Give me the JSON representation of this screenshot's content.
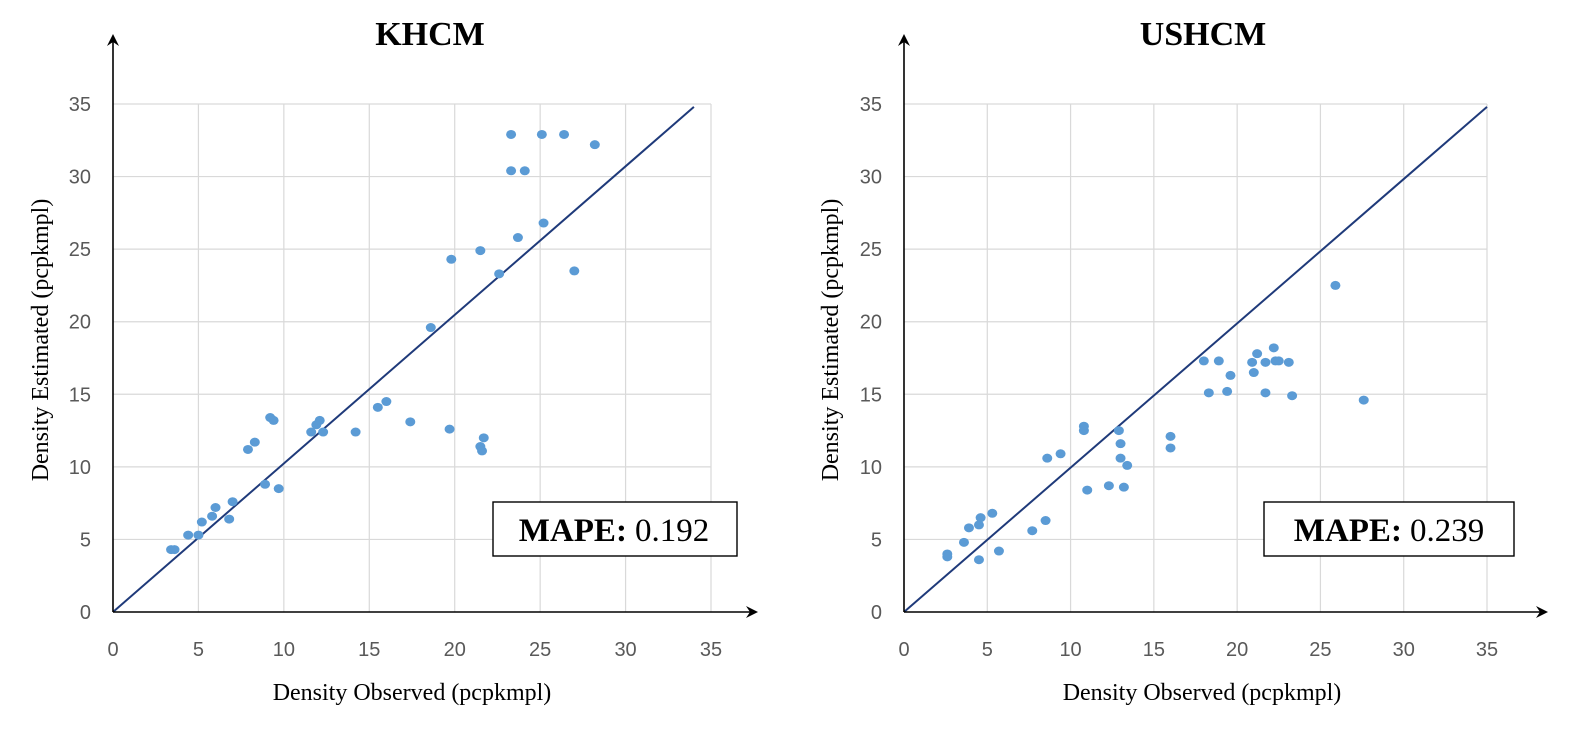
{
  "colors": {
    "point": "#5b9bd5",
    "line": "#1f3a7a",
    "grid": "#d9d9d9",
    "axis": "#000000"
  },
  "chart_data": [
    {
      "type": "scatter",
      "title": "KHCM",
      "xlabel": "Density Observed (pcpkmpl)",
      "ylabel": "Density Estimated (pcpkmpl)",
      "xlim": [
        0,
        35
      ],
      "ylim": [
        0,
        35
      ],
      "xticks": [
        "0",
        "5",
        "10",
        "15",
        "20",
        "25",
        "30",
        "35"
      ],
      "yticks": [
        "0",
        "5",
        "10",
        "15",
        "20",
        "25",
        "30",
        "35"
      ],
      "grid": true,
      "reference_line": {
        "x": [
          0,
          34
        ],
        "y": [
          0,
          34.8
        ]
      },
      "annotation": {
        "label": "MAPE:",
        "value": "0.192",
        "placement": "bottom-right"
      },
      "points": [
        [
          3.4,
          4.3
        ],
        [
          3.6,
          4.3
        ],
        [
          4.4,
          5.3
        ],
        [
          5.0,
          5.3
        ],
        [
          5.2,
          6.2
        ],
        [
          5.8,
          6.6
        ],
        [
          6.0,
          7.2
        ],
        [
          6.8,
          6.4
        ],
        [
          7.0,
          7.6
        ],
        [
          7.9,
          11.2
        ],
        [
          8.3,
          11.7
        ],
        [
          8.9,
          8.8
        ],
        [
          9.2,
          13.4
        ],
        [
          9.4,
          13.2
        ],
        [
          9.7,
          8.5
        ],
        [
          11.6,
          12.4
        ],
        [
          11.9,
          12.9
        ],
        [
          12.1,
          13.2
        ],
        [
          12.3,
          12.4
        ],
        [
          14.2,
          12.4
        ],
        [
          15.5,
          14.1
        ],
        [
          16.0,
          14.5
        ],
        [
          17.4,
          13.1
        ],
        [
          18.6,
          19.6
        ],
        [
          19.7,
          12.6
        ],
        [
          19.8,
          24.3
        ],
        [
          21.5,
          24.9
        ],
        [
          21.5,
          11.4
        ],
        [
          21.6,
          11.1
        ],
        [
          21.7,
          12.0
        ],
        [
          22.6,
          23.3
        ],
        [
          23.3,
          32.9
        ],
        [
          23.3,
          30.4
        ],
        [
          23.7,
          25.8
        ],
        [
          24.1,
          30.4
        ],
        [
          25.1,
          32.9
        ],
        [
          25.2,
          26.8
        ],
        [
          26.4,
          32.9
        ],
        [
          27.0,
          23.5
        ],
        [
          28.2,
          32.2
        ]
      ]
    },
    {
      "type": "scatter",
      "title": "USHCM",
      "xlabel": "Density Observed (pcpkmpl)",
      "ylabel": "Density Estimated (pcpkmpl)",
      "xlim": [
        0,
        35
      ],
      "ylim": [
        0,
        35
      ],
      "xticks": [
        "0",
        "5",
        "10",
        "15",
        "20",
        "25",
        "30",
        "35"
      ],
      "yticks": [
        "0",
        "5",
        "10",
        "15",
        "20",
        "25",
        "30",
        "35"
      ],
      "grid": true,
      "reference_line": {
        "x": [
          0,
          35
        ],
        "y": [
          0,
          34.8
        ]
      },
      "annotation": {
        "label": "MAPE:",
        "value": "0.239",
        "placement": "bottom-right"
      },
      "points": [
        [
          2.6,
          3.8
        ],
        [
          2.6,
          4.0
        ],
        [
          3.6,
          4.8
        ],
        [
          3.9,
          5.8
        ],
        [
          4.5,
          3.6
        ],
        [
          4.5,
          6.0
        ],
        [
          4.6,
          6.5
        ],
        [
          5.3,
          6.8
        ],
        [
          5.7,
          4.2
        ],
        [
          7.7,
          5.6
        ],
        [
          8.5,
          6.3
        ],
        [
          8.6,
          10.6
        ],
        [
          9.4,
          10.9
        ],
        [
          10.8,
          12.5
        ],
        [
          10.8,
          12.8
        ],
        [
          11.0,
          8.4
        ],
        [
          12.3,
          8.7
        ],
        [
          12.9,
          12.5
        ],
        [
          13.0,
          11.6
        ],
        [
          13.0,
          10.6
        ],
        [
          13.2,
          8.6
        ],
        [
          13.4,
          10.1
        ],
        [
          16.0,
          11.3
        ],
        [
          16.0,
          12.1
        ],
        [
          18.0,
          17.3
        ],
        [
          18.3,
          15.1
        ],
        [
          18.9,
          17.3
        ],
        [
          19.4,
          15.2
        ],
        [
          19.6,
          16.3
        ],
        [
          20.9,
          17.2
        ],
        [
          21.0,
          16.5
        ],
        [
          21.2,
          17.8
        ],
        [
          21.7,
          17.2
        ],
        [
          21.7,
          15.1
        ],
        [
          22.2,
          18.2
        ],
        [
          22.3,
          17.3
        ],
        [
          22.5,
          17.3
        ],
        [
          23.1,
          17.2
        ],
        [
          23.3,
          14.9
        ],
        [
          25.9,
          22.5
        ],
        [
          27.6,
          14.6
        ]
      ]
    }
  ]
}
